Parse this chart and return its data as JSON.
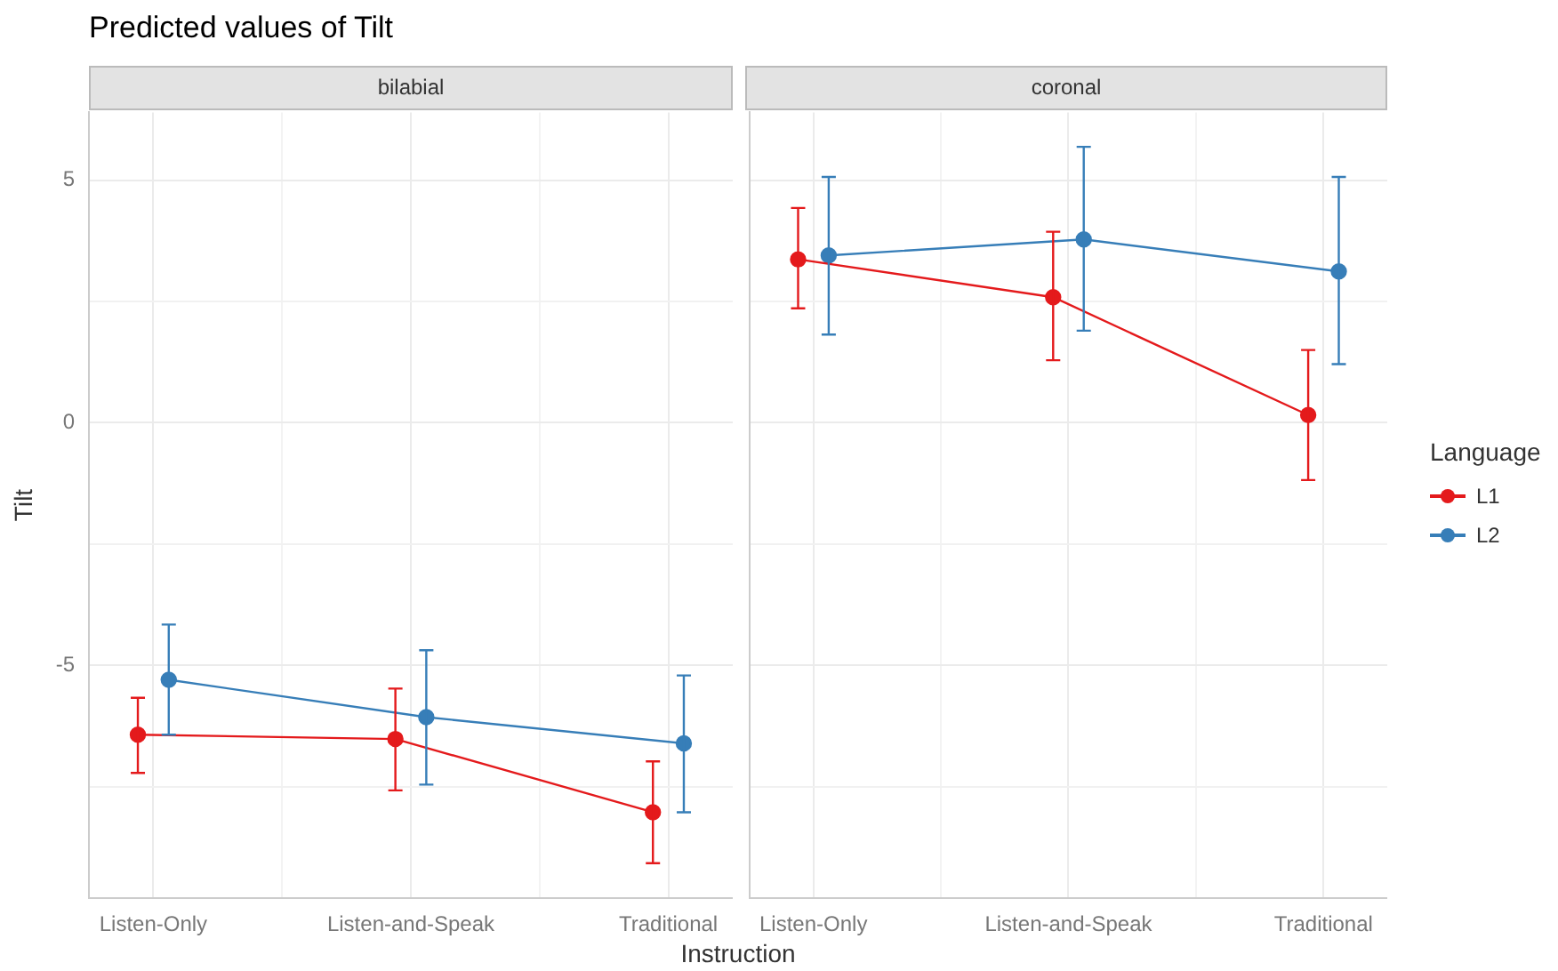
{
  "chart_data": [
    {
      "type": "line",
      "title": "Predicted values of Tilt",
      "subtitle": "bilabial",
      "xlabel": "Instruction",
      "ylabel": "Tilt",
      "categories": [
        "Listen-Only",
        "Listen-and-Speak",
        "Traditional"
      ],
      "ylim": [
        -9.8,
        6.4
      ],
      "yticks": [
        {
          "value": -7.5,
          "label": null
        },
        -5,
        {
          "value": -2.5,
          "label": null
        },
        0,
        {
          "value": 2.5,
          "label": null
        },
        5
      ],
      "grid": true,
      "marker": "circle",
      "series": [
        {
          "color": "#e41a1c",
          "values": [
            -6.43,
            -6.52,
            -8.03
          ],
          "errors": [
            [
              -7.22,
              -5.67
            ],
            [
              -7.58,
              -5.48
            ],
            [
              -9.08,
              -6.98
            ]
          ]
        },
        {
          "color": "#377eb8",
          "values": [
            -5.3,
            -6.07,
            -6.61
          ],
          "errors": [
            [
              -6.43,
              -4.16
            ],
            [
              -7.46,
              -4.69
            ],
            [
              -8.03,
              -5.21
            ]
          ]
        }
      ]
    },
    {
      "type": "line",
      "subtitle": "coronal",
      "legend": "right",
      "legend_title": "Language",
      "categories": [
        "Listen-Only",
        "Listen-and-Speak",
        "Traditional"
      ],
      "ylim": [
        -9.8,
        6.4
      ],
      "yticks": [
        {
          "value": -7.5,
          "label": null
        },
        -5,
        {
          "value": -2.5,
          "label": null
        },
        0,
        {
          "value": 2.5,
          "label": null
        },
        5
      ],
      "tick_labels": "x",
      "grid": true,
      "marker": "circle",
      "series": [
        {
          "name": "L1",
          "color": "#e41a1c",
          "values": [
            3.37,
            2.59,
            0.16
          ],
          "errors": [
            [
              2.36,
              4.43
            ],
            [
              1.29,
              3.94
            ],
            [
              -1.18,
              1.5
            ]
          ]
        },
        {
          "name": "L2",
          "color": "#377eb8",
          "values": [
            3.45,
            3.78,
            3.12
          ],
          "errors": [
            [
              1.82,
              5.07
            ],
            [
              1.9,
              5.69
            ],
            [
              1.21,
              5.07
            ]
          ]
        }
      ]
    }
  ]
}
